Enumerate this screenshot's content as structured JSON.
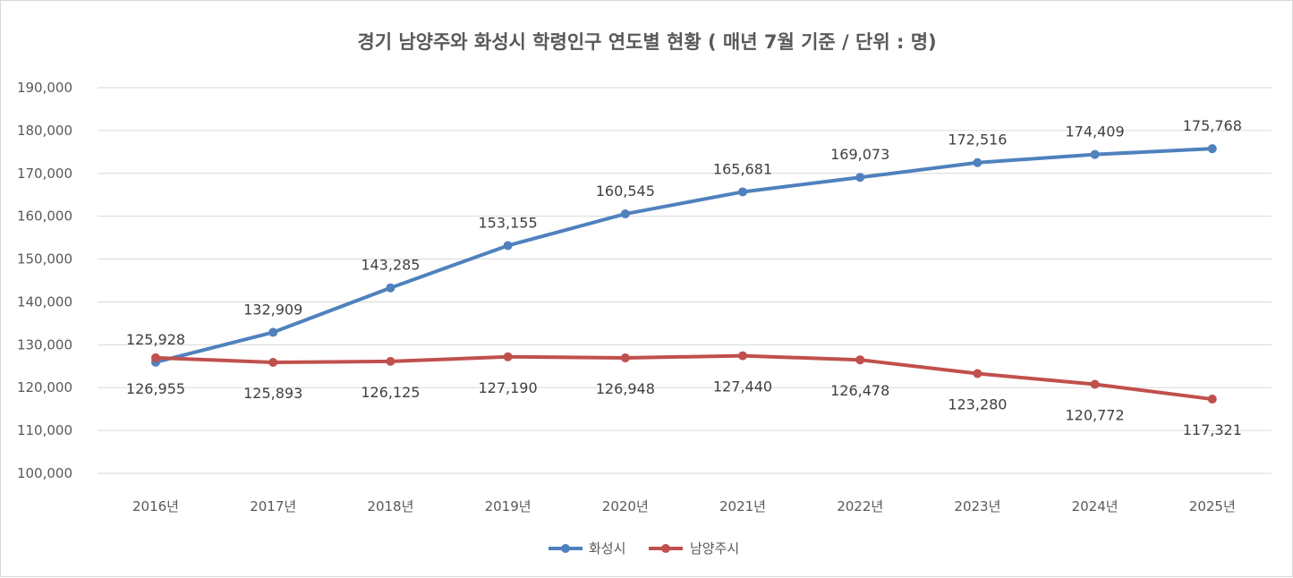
{
  "chart_data": {
    "type": "line",
    "title": "경기 남양주와 화성시 학령인구 연도별 현황 ( 매년 7월 기준 / 단위 : 명)",
    "categories": [
      "2016년",
      "2017년",
      "2018년",
      "2019년",
      "2020년",
      "2021년",
      "2022년",
      "2023년",
      "2024년",
      "2025년"
    ],
    "series": [
      {
        "name": "화성시",
        "color": "#4f81bd",
        "values": [
          125928,
          132909,
          143285,
          153155,
          160545,
          165681,
          169073,
          172516,
          174409,
          175768
        ],
        "labels": [
          "125,928",
          "132,909",
          "143,285",
          "153,155",
          "160,545",
          "165,681",
          "169,073",
          "172,516",
          "174,409",
          "175,768"
        ],
        "label_position": "above"
      },
      {
        "name": "남양주시",
        "color": "#c0504d",
        "values": [
          126955,
          125893,
          126125,
          127190,
          126948,
          127440,
          126478,
          123280,
          120772,
          117321
        ],
        "labels": [
          "126,955",
          "125,893",
          "126,125",
          "127,190",
          "126,948",
          "127,440",
          "126,478",
          "123,280",
          "120,772",
          "117,321"
        ],
        "label_position": "below"
      }
    ],
    "ylim": [
      100000,
      190000
    ],
    "yticks": [
      {
        "value": 190000,
        "label": "190,000"
      },
      {
        "value": 180000,
        "label": "180,000"
      },
      {
        "value": 170000,
        "label": "170,000"
      },
      {
        "value": 160000,
        "label": "160,000"
      },
      {
        "value": 150000,
        "label": "150,000"
      },
      {
        "value": 140000,
        "label": "140,000"
      },
      {
        "value": 130000,
        "label": "130,000"
      },
      {
        "value": 120000,
        "label": "120,000"
      },
      {
        "value": 110000,
        "label": "110,000"
      },
      {
        "value": 100000,
        "label": "100,000"
      }
    ],
    "grid": true,
    "legend": "bottom-center"
  }
}
